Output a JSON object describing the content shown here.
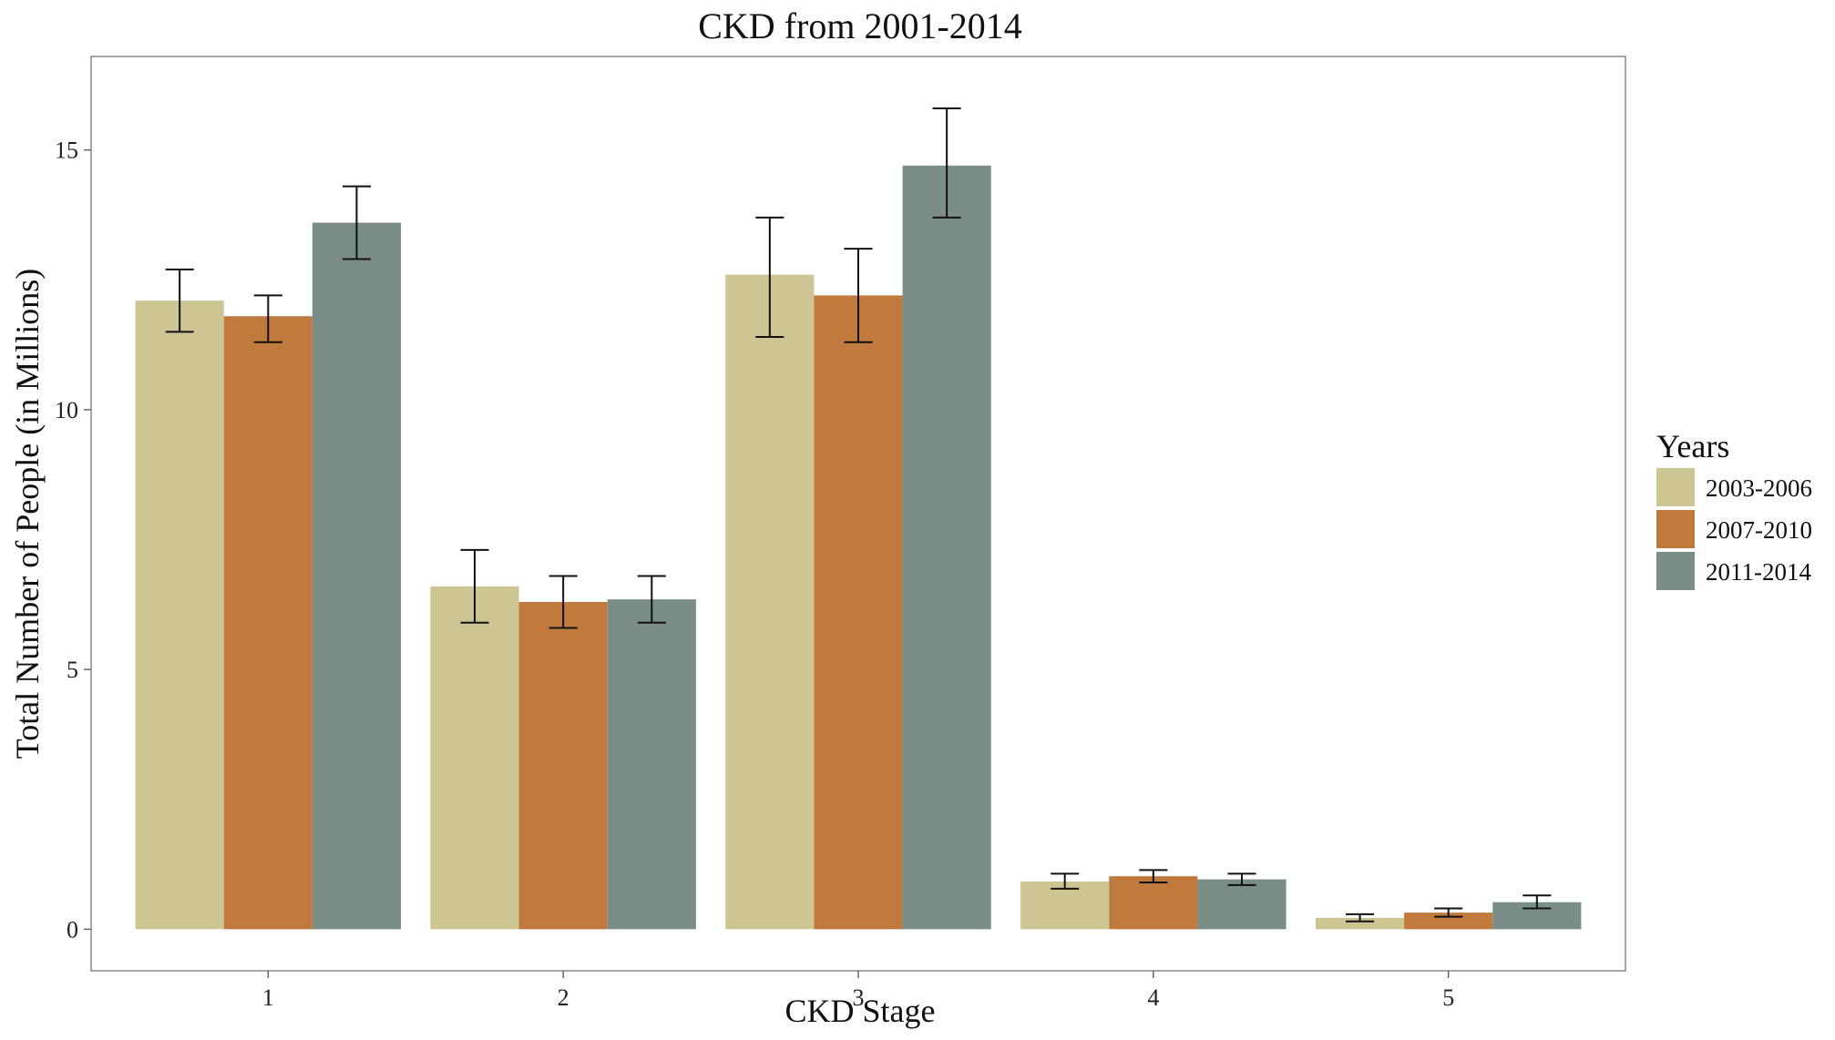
{
  "chart_data": {
    "type": "bar",
    "title": "CKD from 2001-2014",
    "xlabel": "CKD Stage",
    "ylabel": "Total Number of People (in Millions)",
    "categories": [
      "1",
      "2",
      "3",
      "4",
      "5"
    ],
    "ylim": [
      -0.8,
      16.8
    ],
    "yticks": [
      0,
      5,
      10,
      15
    ],
    "grid": false,
    "legend": {
      "title": "Years",
      "position": "right"
    },
    "series": [
      {
        "name": "2003-2006",
        "color": "#CDC593",
        "values": [
          12.1,
          6.6,
          12.6,
          0.92,
          0.22
        ],
        "error_low": [
          11.5,
          5.9,
          11.4,
          0.78,
          0.15
        ],
        "error_high": [
          12.7,
          7.3,
          13.7,
          1.07,
          0.29
        ]
      },
      {
        "name": "2007-2010",
        "color": "#C07A3E",
        "values": [
          11.8,
          6.3,
          12.2,
          1.02,
          0.32
        ],
        "error_low": [
          11.3,
          5.8,
          11.3,
          0.9,
          0.24
        ],
        "error_high": [
          12.2,
          6.8,
          13.1,
          1.14,
          0.4
        ]
      },
      {
        "name": "2011-2014",
        "color": "#7A8E87",
        "values": [
          13.6,
          6.35,
          14.7,
          0.96,
          0.52
        ],
        "error_low": [
          12.9,
          5.9,
          13.7,
          0.85,
          0.4
        ],
        "error_high": [
          14.3,
          6.8,
          15.8,
          1.07,
          0.65
        ]
      }
    ]
  }
}
